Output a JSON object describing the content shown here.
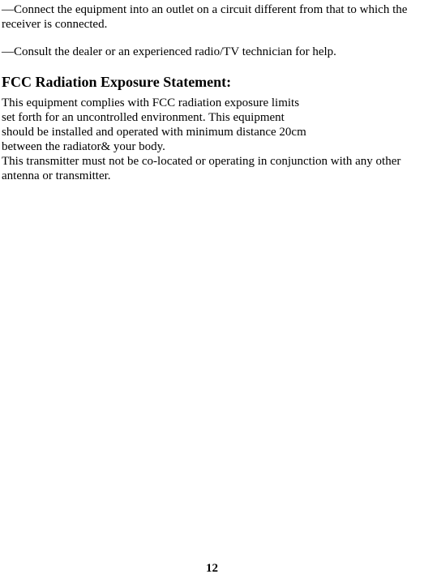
{
  "paragraphs": {
    "p1": "—Connect the equipment into an outlet on a circuit different from that to which the receiver is connected.",
    "p2": "—Consult the dealer or an experienced radio/TV technician for help."
  },
  "heading": "FCC Radiation Exposure Statement:",
  "body": {
    "l1": "This equipment complies with FCC radiation exposure limits",
    "l2": "set forth for an uncontrolled environment. This equipment",
    "l3": "should be installed and operated with minimum distance 20cm",
    "l4": "between the radiator& your body.",
    "l5": "This transmitter must not be co-located or operating in conjunction with any other antenna or transmitter."
  },
  "page_number": "12",
  "styles": {
    "font_family": "Times New Roman",
    "body_font_size": 15,
    "heading_font_size": 18,
    "text_color": "#000000",
    "background_color": "#ffffff"
  }
}
